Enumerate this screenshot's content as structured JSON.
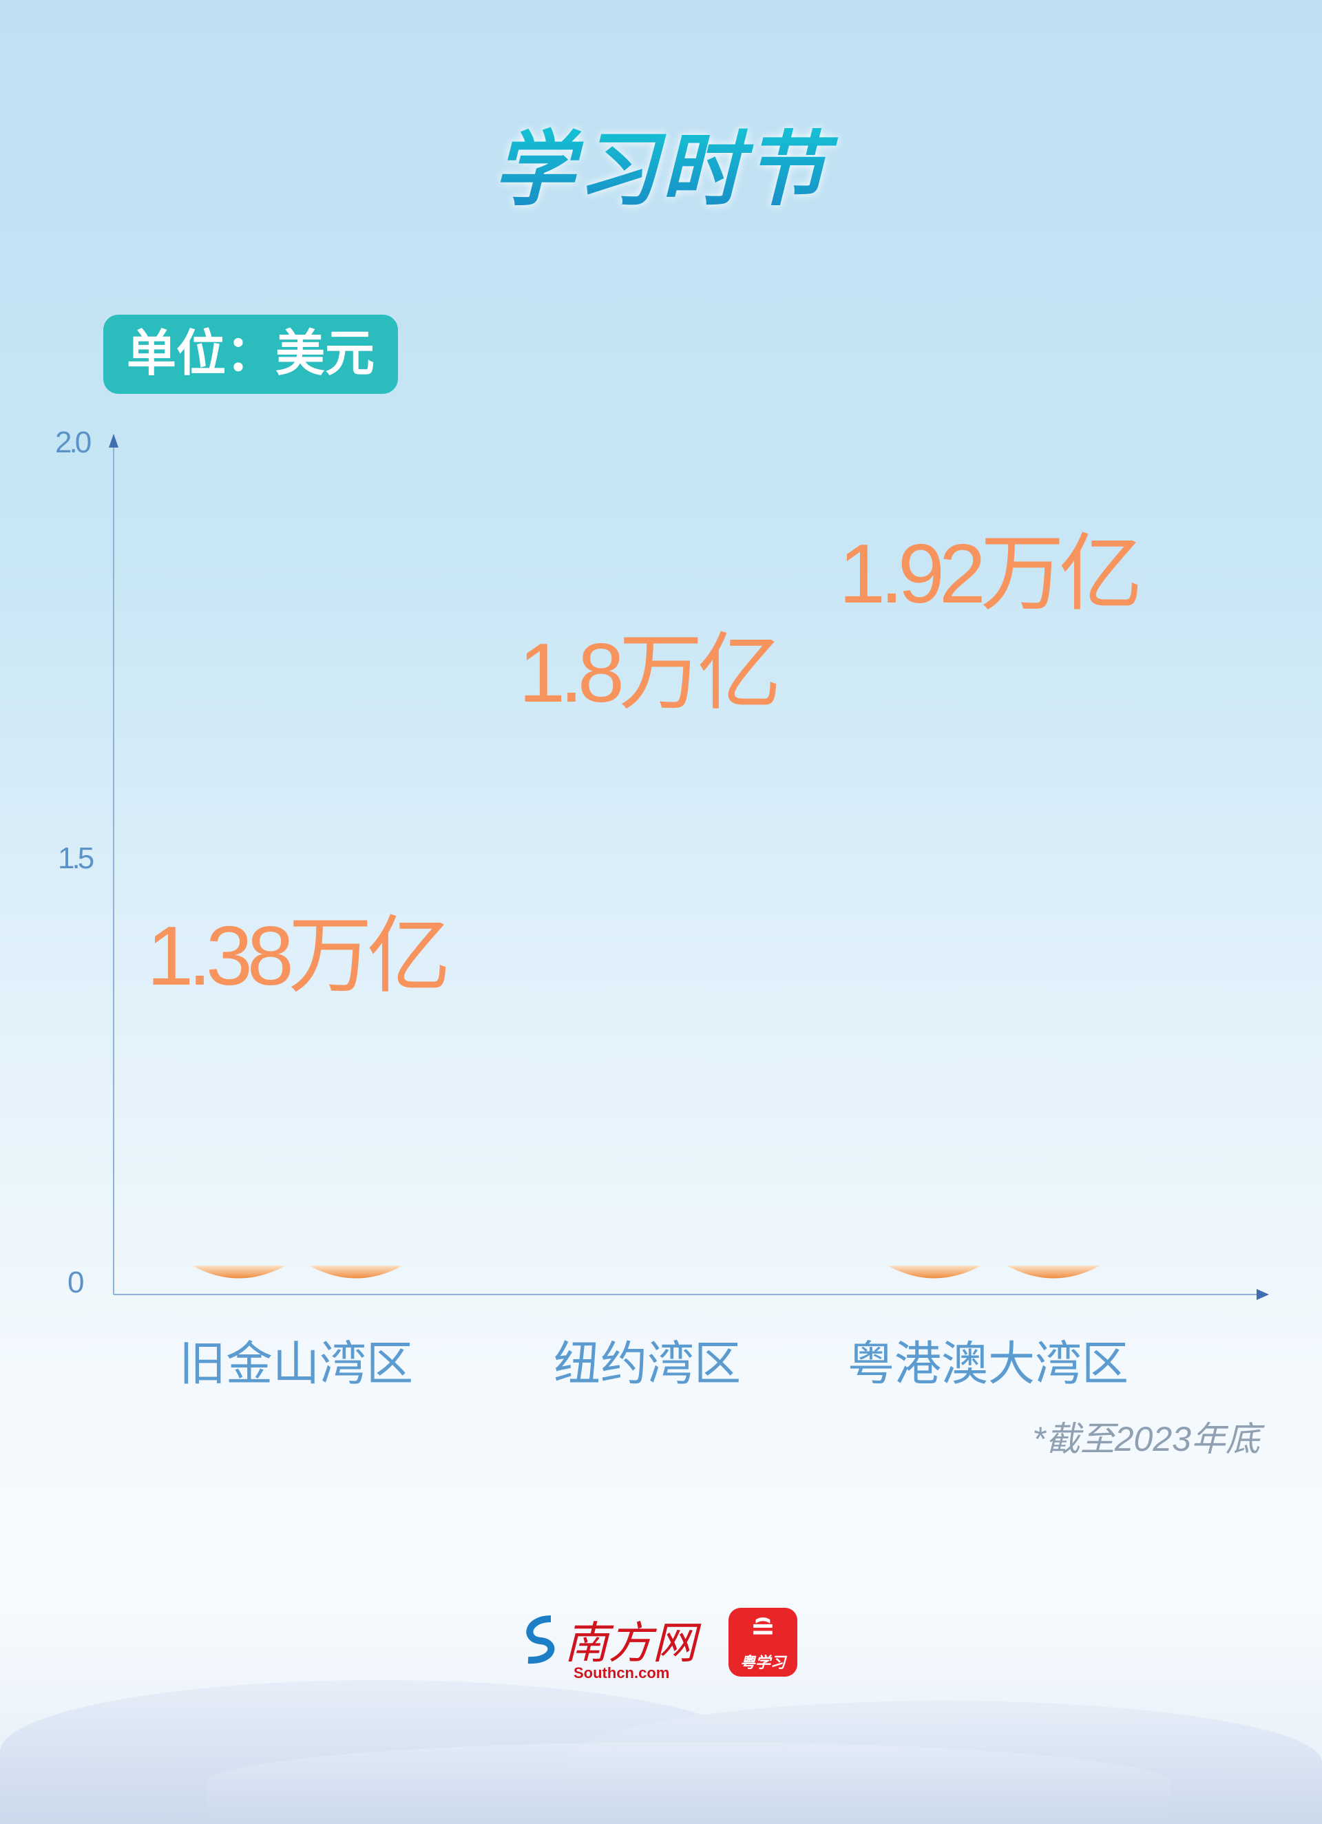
{
  "header": {
    "title": "学习时节"
  },
  "unit_badge": "单位：美元",
  "chart_data": {
    "type": "bar",
    "categories": [
      "旧金山湾区",
      "纽约湾区",
      "粤港澳大湾区"
    ],
    "values": [
      1.38,
      1.8,
      1.92
    ],
    "value_labels": [
      "1.38万亿",
      "1.8万亿",
      "1.92万亿"
    ],
    "yticks": [
      "0",
      "1.5",
      "2.0"
    ],
    "ylim": [
      0,
      2.0
    ],
    "ylabel": "单位：美元",
    "colors": {
      "value": "#f7935d",
      "axis": "#5b93c8",
      "category": "#5b9bd0"
    }
  },
  "footnote": "*截至2023年底",
  "footer": {
    "logo1_text": "南方网",
    "logo1_sub": "Southcn.com",
    "logo2_text": "粤学习"
  }
}
